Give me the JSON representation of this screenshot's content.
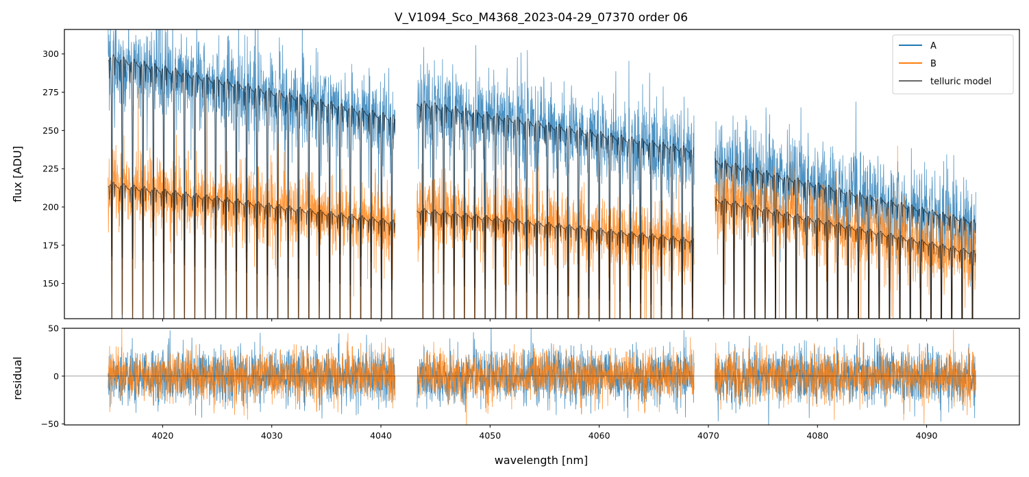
{
  "figure": {
    "title": "V_V1094_Sco_M4368_2023-04-29_07370  order 06"
  },
  "chart_data": {
    "type": "line",
    "title": "V_V1094_Sco_M4368_2023-04-29_07370  order 06",
    "xlabel": "wavelength [nm]",
    "xlim": [
      4011,
      4098.5
    ],
    "x_ticks": [
      "4020",
      "4030",
      "4040",
      "4050",
      "4060",
      "4070",
      "4080",
      "4090"
    ],
    "segments": [
      [
        4015,
        4041.3
      ],
      [
        4043.3,
        4068.7
      ],
      [
        4070.6,
        4094.5
      ]
    ],
    "top_panel": {
      "ylabel": "flux [ADU]",
      "ylim": [
        127,
        316
      ],
      "y_ticks": [
        "150",
        "175",
        "200",
        "225",
        "250",
        "275",
        "300"
      ],
      "series": [
        {
          "name": "A",
          "color": "#1f77b4",
          "continuum_start": [
            298,
            268,
            230
          ],
          "continuum_end": [
            258,
            237,
            190
          ],
          "line_depth": 0.17,
          "noise": 14
        },
        {
          "name": "B",
          "color": "#ff7f0e",
          "continuum_start": [
            215,
            198,
            205
          ],
          "continuum_end": [
            190,
            178,
            170
          ],
          "line_depth": 0.17,
          "noise": 12
        },
        {
          "name": "telluric model",
          "color": "#000000"
        }
      ],
      "absorption_line_spacing_nm": 0.95
    },
    "bottom_panel": {
      "ylabel": "residual",
      "ylim": [
        -51,
        50
      ],
      "y_ticks": [
        "50",
        "0",
        "−50"
      ],
      "noise_A": 14,
      "noise_B": 13
    },
    "legend": {
      "position": "top-right",
      "entries": [
        "A",
        "B",
        "telluric model"
      ]
    }
  }
}
